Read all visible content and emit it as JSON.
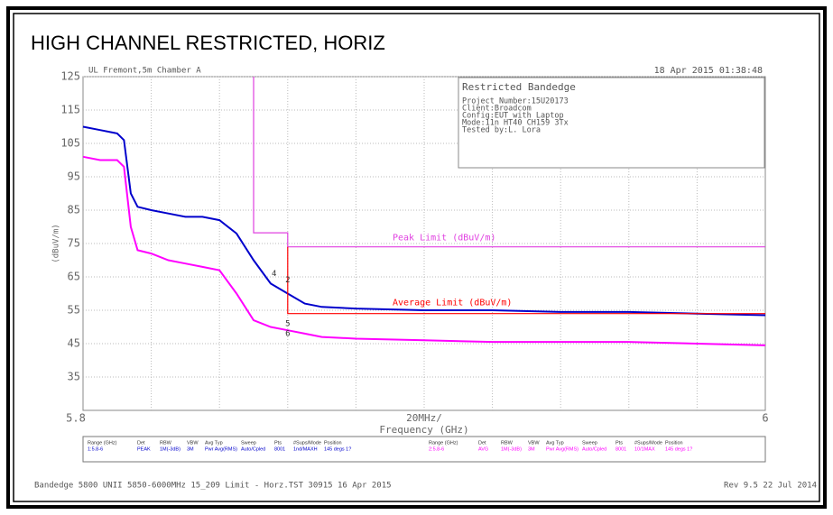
{
  "chart_data": {
    "type": "line",
    "title": "HIGH CHANNEL RESTRICTED, HORIZ",
    "header_left": "UL Fremont,5m Chamber A",
    "header_right": "18 Apr 2015   01:38:48",
    "info_box": [
      "Restricted Bandedge",
      "Project Number:15U20173",
      "Client:Broadcom",
      "Config:EUT with Laptop",
      "Mode:11n HT40 CH159 3Tx",
      "Tested by:L. Lora"
    ],
    "y_label": "(dBuV/m)",
    "x_label": "Frequency (GHz)",
    "x_center_label": "20MHz/",
    "xlim": [
      5.8,
      6
    ],
    "xticks": [
      5.8,
      6
    ],
    "ylim": [
      25,
      125
    ],
    "yticks": [
      125,
      115,
      105,
      95,
      85,
      75,
      65,
      55,
      45,
      35
    ],
    "grid": true,
    "series": [
      {
        "name": "Peak",
        "color": "#0000cc",
        "x": [
          5.8,
          5.805,
          5.81,
          5.812,
          5.814,
          5.816,
          5.82,
          5.825,
          5.83,
          5.835,
          5.84,
          5.845,
          5.85,
          5.855,
          5.86,
          5.865,
          5.87,
          5.88,
          5.9,
          5.92,
          5.94,
          5.96,
          5.98,
          6
        ],
        "values": [
          110,
          109,
          108,
          106,
          90,
          86,
          85,
          84,
          83,
          83,
          82,
          78,
          70,
          63,
          60,
          57,
          56,
          55.5,
          55,
          55,
          54.5,
          54.5,
          54,
          53.5
        ]
      },
      {
        "name": "Average",
        "color": "#ff00ff",
        "x": [
          5.8,
          5.805,
          5.81,
          5.812,
          5.814,
          5.816,
          5.82,
          5.825,
          5.83,
          5.835,
          5.84,
          5.845,
          5.85,
          5.855,
          5.86,
          5.865,
          5.87,
          5.88,
          5.9,
          5.92,
          5.94,
          5.96,
          5.98,
          6
        ],
        "values": [
          101,
          100,
          100,
          98,
          80,
          73,
          72,
          70,
          69,
          68,
          67,
          60,
          52,
          50,
          49,
          48,
          47,
          46.5,
          46,
          45.5,
          45.5,
          45.5,
          45,
          44.5
        ]
      },
      {
        "name": "Peak Limit (dBuV/m)",
        "color": "#e040e0",
        "x": [
          5.85,
          5.85,
          5.86,
          5.86,
          6
        ],
        "values": [
          125,
          78.2,
          78.2,
          74,
          74
        ]
      },
      {
        "name": "Average Limit (dBuV/m)",
        "color": "#ff0000",
        "x": [
          5.86,
          5.86,
          6
        ],
        "values": [
          74,
          54,
          54
        ]
      }
    ],
    "markers": [
      {
        "label": "4",
        "x": 5.856,
        "y": 66
      },
      {
        "label": "2",
        "x": 5.86,
        "y": 64
      },
      {
        "label": "6",
        "x": 5.86,
        "y": 48
      },
      {
        "label": "5",
        "x": 5.86,
        "y": 51
      }
    ],
    "settings_table": {
      "headers": [
        "Range (GHz)",
        "Det",
        "RBW",
        "VBW",
        "Avg Typ",
        "Sweep",
        "Pts",
        "#Sups/Mode",
        "Position"
      ],
      "rows": [
        [
          "1:5.8-6",
          "PEAK",
          "1M(-3dB)",
          "3M",
          "Pwr Avg(RMS)",
          "Auto/Cpled",
          "8001",
          "1nd/MAXH",
          "145 degs 1?"
        ],
        [
          "2:5.8-6",
          "AVG",
          "1M(-3dB)",
          "3M",
          "Pwr Avg(RMS)",
          "Auto/Cpled",
          "8001",
          "10/1MAX",
          "145 degs 1?"
        ]
      ]
    },
    "footer_left": "Bandedge 5800 UNII 5850-6000MHz 15_209 Limit - Horz.TST 30915 16 Apr 2015",
    "footer_right": "Rev 9.5 22 Jul 2014"
  }
}
